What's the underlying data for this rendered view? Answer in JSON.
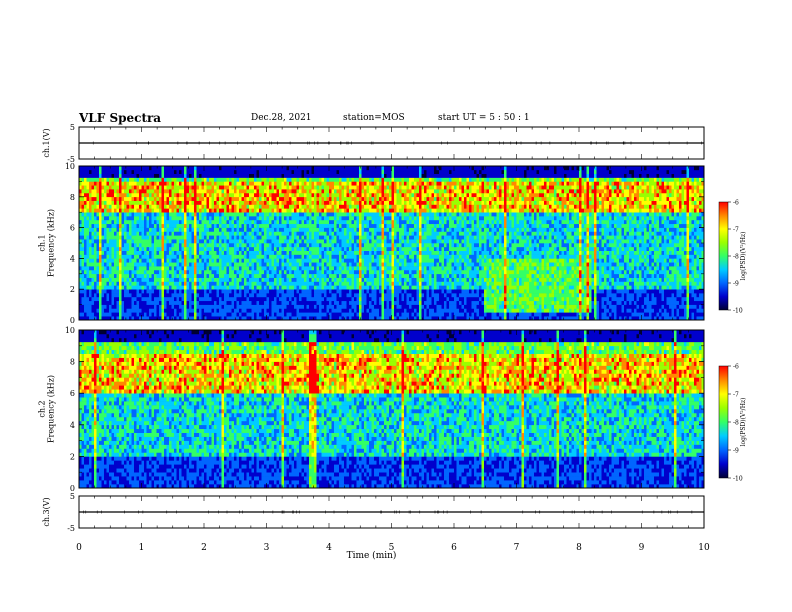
{
  "header": {
    "title": "VLF Spectra",
    "date": "Dec.28, 2021",
    "station": "station=MOS",
    "start_ut": "start  UT =  5 : 50 : 1"
  },
  "colors": {
    "spectrogram_scale": [
      "#000033",
      "#0000cc",
      "#0066ff",
      "#00ccff",
      "#33ff66",
      "#99ff00",
      "#ffff00",
      "#ff8800",
      "#ff0000"
    ],
    "background": "#ffffff",
    "axis": "#000000"
  },
  "chart_data": [
    {
      "type": "line",
      "panel": "ch1-voltage",
      "ylabel": "ch.1(V)",
      "ylim": [
        -5,
        5
      ],
      "yticks": [
        "5",
        "-5"
      ],
      "x": [
        0,
        10
      ],
      "values": [
        0,
        0
      ],
      "xlim": [
        0,
        10
      ]
    },
    {
      "type": "heatmap",
      "panel": "ch1-spectrogram",
      "ylabel": "ch.1\nFrequency (kHz)",
      "ylim": [
        0,
        10
      ],
      "yticks": [
        "0",
        "2",
        "4",
        "6",
        "8",
        "10"
      ],
      "xlim": [
        0,
        10
      ],
      "colorbar": {
        "label": "log(PSD)(V²/Hz)",
        "range": [
          -10,
          -6
        ],
        "ticks": [
          "-6",
          "-7",
          "-8",
          "-9",
          "-10"
        ]
      },
      "bands_khz": {
        "intense_band": [
          7.0,
          9.0
        ],
        "noise_floor_low": [
          0.0,
          2.0
        ],
        "enhanced_region": {
          "t_min": [
            6.5,
            8.2
          ],
          "f_khz": [
            0.5,
            4.0
          ]
        }
      }
    },
    {
      "type": "heatmap",
      "panel": "ch2-spectrogram",
      "ylabel": "ch.2\nFrequency (kHz)",
      "ylim": [
        0,
        10
      ],
      "yticks": [
        "0",
        "2",
        "4",
        "6",
        "8",
        "10"
      ],
      "xlim": [
        0,
        10
      ],
      "colorbar": {
        "label": "log(PSD)(V²/Hz)",
        "range": [
          -10,
          -6
        ],
        "ticks": [
          "-6",
          "-7",
          "-8",
          "-9",
          "-10"
        ]
      },
      "bands_khz": {
        "intense_band": [
          6.0,
          8.5
        ],
        "noise_floor_low": [
          0.0,
          2.0
        ]
      }
    },
    {
      "type": "line",
      "panel": "ch3-voltage",
      "ylabel": "ch.3(V)",
      "ylim": [
        -5,
        5
      ],
      "yticks": [
        "5",
        "-5"
      ],
      "x": [
        0,
        10
      ],
      "values": [
        0,
        0
      ],
      "xlim": [
        0,
        10
      ]
    }
  ],
  "xaxis": {
    "label": "Time  (min)",
    "ticks": [
      "0",
      "1",
      "2",
      "3",
      "4",
      "5",
      "6",
      "7",
      "8",
      "9",
      "10"
    ]
  }
}
